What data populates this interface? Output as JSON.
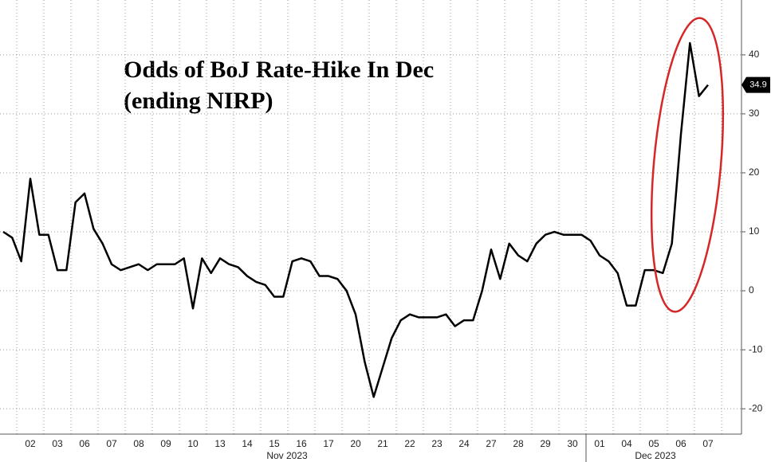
{
  "chart_data": {
    "type": "line",
    "title": "Odds of BoJ Rate-Hike In Dec",
    "subtitle": "(ending NIRP)",
    "categories": [
      null,
      null,
      null,
      "02",
      null,
      null,
      "03",
      null,
      null,
      "06",
      null,
      null,
      "07",
      null,
      null,
      "08",
      null,
      null,
      "09",
      null,
      null,
      "10",
      null,
      null,
      "13",
      null,
      null,
      "14",
      null,
      null,
      "15",
      null,
      null,
      "16",
      null,
      null,
      "17",
      null,
      null,
      "20",
      null,
      null,
      "21",
      null,
      null,
      "22",
      null,
      null,
      "23",
      null,
      null,
      "24",
      null,
      null,
      "27",
      null,
      null,
      "28",
      null,
      null,
      "29",
      null,
      null,
      "30",
      null,
      null,
      "01",
      null,
      null,
      "04",
      null,
      null,
      "05",
      null,
      null,
      "06",
      null,
      null,
      "07",
      null
    ],
    "month_labels": [
      "Nov 2023",
      "Dec 2023"
    ],
    "series": [
      {
        "name": "Odds of BoJ Rate-Hike",
        "color": "#000000",
        "values": [
          10,
          9,
          5,
          19,
          9.5,
          9.5,
          3.5,
          3.5,
          15,
          16.5,
          10.5,
          8,
          4.5,
          3.5,
          4,
          4.5,
          3.5,
          4.5,
          4.5,
          4.5,
          5.5,
          -3,
          5.5,
          3,
          5.5,
          4.5,
          4,
          2.5,
          1.5,
          1,
          -1,
          -1,
          5,
          5.5,
          5,
          2.5,
          2.5,
          2,
          0,
          -4,
          -12,
          -18,
          -13,
          -8,
          -5,
          -4,
          -4.5,
          -4.5,
          -4.5,
          -4,
          -6,
          -5,
          -5,
          0,
          7,
          2,
          8,
          6,
          5,
          8,
          9.5,
          10,
          9.5,
          9.5,
          9.5,
          8.5,
          6,
          5,
          3,
          -2.5,
          -2.5,
          3.5,
          3.5,
          3,
          8,
          26.5,
          42,
          33,
          34.9,
          null
        ]
      }
    ],
    "ylim": [
      -24.3,
      49.3
    ],
    "yticks": [
      -20,
      -10,
      0,
      10,
      20,
      30,
      40
    ],
    "grid": true
  }
}
